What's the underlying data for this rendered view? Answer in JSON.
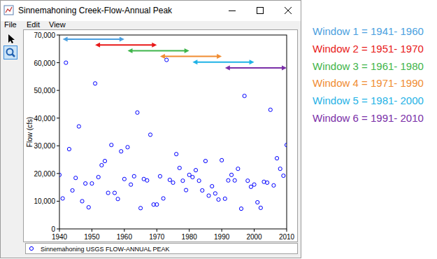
{
  "window": {
    "title": "Sinnemahoning Creek-Flow-Annual Peak",
    "menu": [
      "File",
      "Edit",
      "View"
    ]
  },
  "chart_data": {
    "type": "scatter",
    "y_label": "Flow (cfs)",
    "x": [
      1940,
      1941,
      1942,
      1943,
      1944,
      1945,
      1946,
      1947,
      1948,
      1949,
      1950,
      1951,
      1952,
      1953,
      1954,
      1955,
      1956,
      1957,
      1958,
      1959,
      1960,
      1961,
      1962,
      1963,
      1964,
      1965,
      1966,
      1967,
      1968,
      1969,
      1970,
      1971,
      1972,
      1973,
      1974,
      1975,
      1976,
      1977,
      1978,
      1979,
      1980,
      1981,
      1982,
      1983,
      1984,
      1985,
      1986,
      1987,
      1988,
      1989,
      1990,
      1991,
      1992,
      1993,
      1994,
      1995,
      1996,
      1997,
      1998,
      1999,
      2000,
      2001,
      2002,
      2003,
      2004,
      2005,
      2006,
      2007,
      2008,
      2009,
      2010
    ],
    "series": [
      {
        "name": "Sinnemahoning USGS FLOW-ANNUAL PEAK",
        "color": "#0000ff",
        "marker": "circle-open",
        "values": [
          19500,
          11000,
          60000,
          28800,
          13900,
          18400,
          37000,
          10000,
          16400,
          7800,
          16400,
          52500,
          18700,
          23000,
          24500,
          13000,
          30300,
          13000,
          10800,
          28000,
          18000,
          29500,
          16000,
          19000,
          42000,
          7500,
          18000,
          17500,
          34000,
          8800,
          8800,
          19000,
          11000,
          61000,
          17700,
          16700,
          27000,
          22000,
          17400,
          14000,
          19500,
          18700,
          21200,
          17400,
          13900,
          24500,
          12000,
          15400,
          12800,
          10600,
          24800,
          10900,
          17500,
          19500,
          17500,
          21700,
          7300,
          48000,
          17400,
          15200,
          16000,
          9600,
          7600,
          17000,
          16700,
          43000,
          15700,
          25500,
          21700,
          19200,
          30300
        ]
      }
    ],
    "xlim": [
      1940,
      2010
    ],
    "xticks": [
      1940,
      1950,
      1960,
      1970,
      1980,
      1990,
      2000,
      2010
    ],
    "ylim": [
      0,
      70000
    ],
    "yticks": [
      0,
      {
        "value": 10000,
        "label": "10,000"
      },
      {
        "value": 20000,
        "label": "20,000"
      },
      {
        "value": 30000,
        "label": "30,000"
      },
      {
        "value": 40000,
        "label": "40,000"
      },
      {
        "value": 50000,
        "label": "50,000"
      },
      {
        "value": 60000,
        "label": "60,000"
      },
      {
        "value": 70000,
        "label": "70,000"
      }
    ],
    "grid": false,
    "legend": "bottom",
    "windows": [
      {
        "label": "Window 1 = 1941- 1960",
        "start": 1941,
        "end": 1960,
        "color": "#4a9fe0"
      },
      {
        "label": "Window 2 = 1951- 1970",
        "start": 1951,
        "end": 1970,
        "color": "#e81818"
      },
      {
        "label": "Window 3 = 1961- 1980",
        "start": 1961,
        "end": 1980,
        "color": "#3fb54a"
      },
      {
        "label": "Window 4 = 1971- 1990",
        "start": 1971,
        "end": 1990,
        "color": "#f08c32"
      },
      {
        "label": "Window 5 = 1981- 2000",
        "start": 1981,
        "end": 2000,
        "color": "#1fb2e6"
      },
      {
        "label": "Window 6 = 1991- 2010",
        "start": 1991,
        "end": 2010,
        "color": "#7a2fa8"
      }
    ]
  }
}
